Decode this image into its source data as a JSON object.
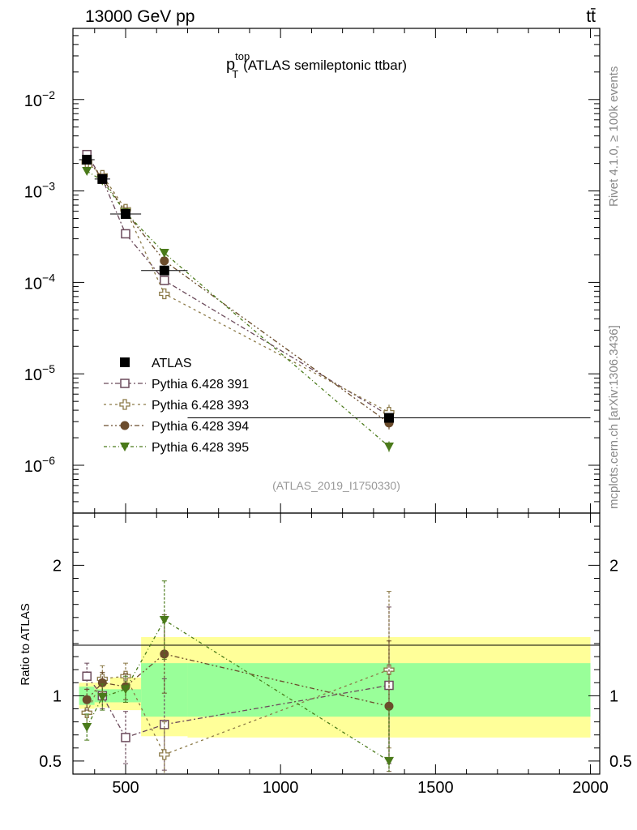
{
  "header": {
    "left": "13000 GeV pp",
    "right": "tt̄"
  },
  "side_labels": {
    "top": "Rivet 4.1.0, ≥ 100k events",
    "bottom": "mcplots.cern.ch [arXiv:1306.3436]"
  },
  "chart_data": {
    "type": "scatter",
    "title_main": "p",
    "title_sup": "top",
    "title_sub": "T",
    "title_rest": "(ATLAS semileptonic ttbar)",
    "analysis_tag": "(ATLAS_2019_I1750330)",
    "xlim": [
      330,
      2030
    ],
    "main_ylim": [
      3e-07,
      0.06
    ],
    "ratio_ylim": [
      0.4,
      2.4
    ],
    "ratio_ylabel": "Ratio to ATLAS",
    "x_ticks": [
      500,
      1000,
      1500,
      2000
    ],
    "x_tick_labels": [
      "500",
      "1000",
      "1500",
      "2000"
    ],
    "main_y_ticks": [
      1e-06,
      1e-05,
      0.0001,
      0.001,
      0.01
    ],
    "main_y_tick_base": [
      "10",
      "10",
      "10",
      "10",
      "10"
    ],
    "main_y_tick_exp": [
      "−6",
      "−5",
      "−4",
      "−3",
      "−2"
    ],
    "ratio_y_ticks": [
      0.5,
      1,
      2
    ],
    "ratio_y_tick_labels": [
      "0.5",
      "1",
      "2"
    ],
    "bins": [
      {
        "lo": 350,
        "hi": 400,
        "x": 375
      },
      {
        "lo": 400,
        "hi": 450,
        "x": 425
      },
      {
        "lo": 450,
        "hi": 550,
        "x": 500
      },
      {
        "lo": 550,
        "hi": 700,
        "x": 625
      },
      {
        "lo": 700,
        "hi": 2000,
        "x": 1350
      }
    ],
    "data": {
      "name": "ATLAS",
      "values": [
        0.0022,
        0.00135,
        0.00056,
        0.000135,
        3.3e-06
      ],
      "band_stat_lo": [
        0.93,
        0.95,
        0.95,
        0.84,
        0.84
      ],
      "band_stat_hi": [
        1.07,
        1.05,
        1.05,
        1.25,
        1.25
      ],
      "band_tot_lo": [
        0.9,
        0.91,
        0.89,
        0.69,
        0.68
      ],
      "band_tot_hi": [
        1.1,
        1.1,
        1.14,
        1.45,
        1.45
      ]
    },
    "series": [
      {
        "name": "Pythia 6.428 391",
        "color": "#6b4a5b",
        "marker": "open-square",
        "values": [
          0.0025,
          0.00135,
          0.00034,
          0.000105,
          3.5e-06
        ],
        "ratio": [
          1.15,
          1.0,
          0.68,
          0.78,
          1.08
        ],
        "ratio_err": [
          0.1,
          0.1,
          0.2,
          0.35,
          0.6
        ]
      },
      {
        "name": "Pythia 6.428 393",
        "color": "#8c7a48",
        "marker": "open-cross",
        "values": [
          0.00205,
          0.00148,
          0.00063,
          7.5e-05,
          3.8e-06
        ],
        "ratio": [
          0.87,
          1.13,
          1.15,
          0.55,
          1.2
        ],
        "ratio_err": [
          0.1,
          0.1,
          0.1,
          0.25,
          0.6
        ]
      },
      {
        "name": "Pythia 6.428 394",
        "color": "#6b4c2c",
        "marker": "filled-circle",
        "values": [
          0.00222,
          0.00138,
          0.00059,
          0.000172,
          2.9e-06
        ],
        "ratio": [
          0.97,
          1.1,
          1.07,
          1.32,
          0.92
        ],
        "ratio_err": [
          0.08,
          0.08,
          0.1,
          0.3,
          0.5
        ]
      },
      {
        "name": "Pythia 6.428 395",
        "color": "#4a7a1a",
        "marker": "filled-triangle-down",
        "values": [
          0.00165,
          0.0013,
          0.00058,
          0.00021,
          1.6e-06
        ],
        "ratio": [
          0.76,
          0.99,
          1.05,
          1.58,
          0.5
        ],
        "ratio_err": [
          0.1,
          0.1,
          0.1,
          0.3,
          0.4
        ]
      }
    ],
    "legend_position": "lower-left"
  }
}
